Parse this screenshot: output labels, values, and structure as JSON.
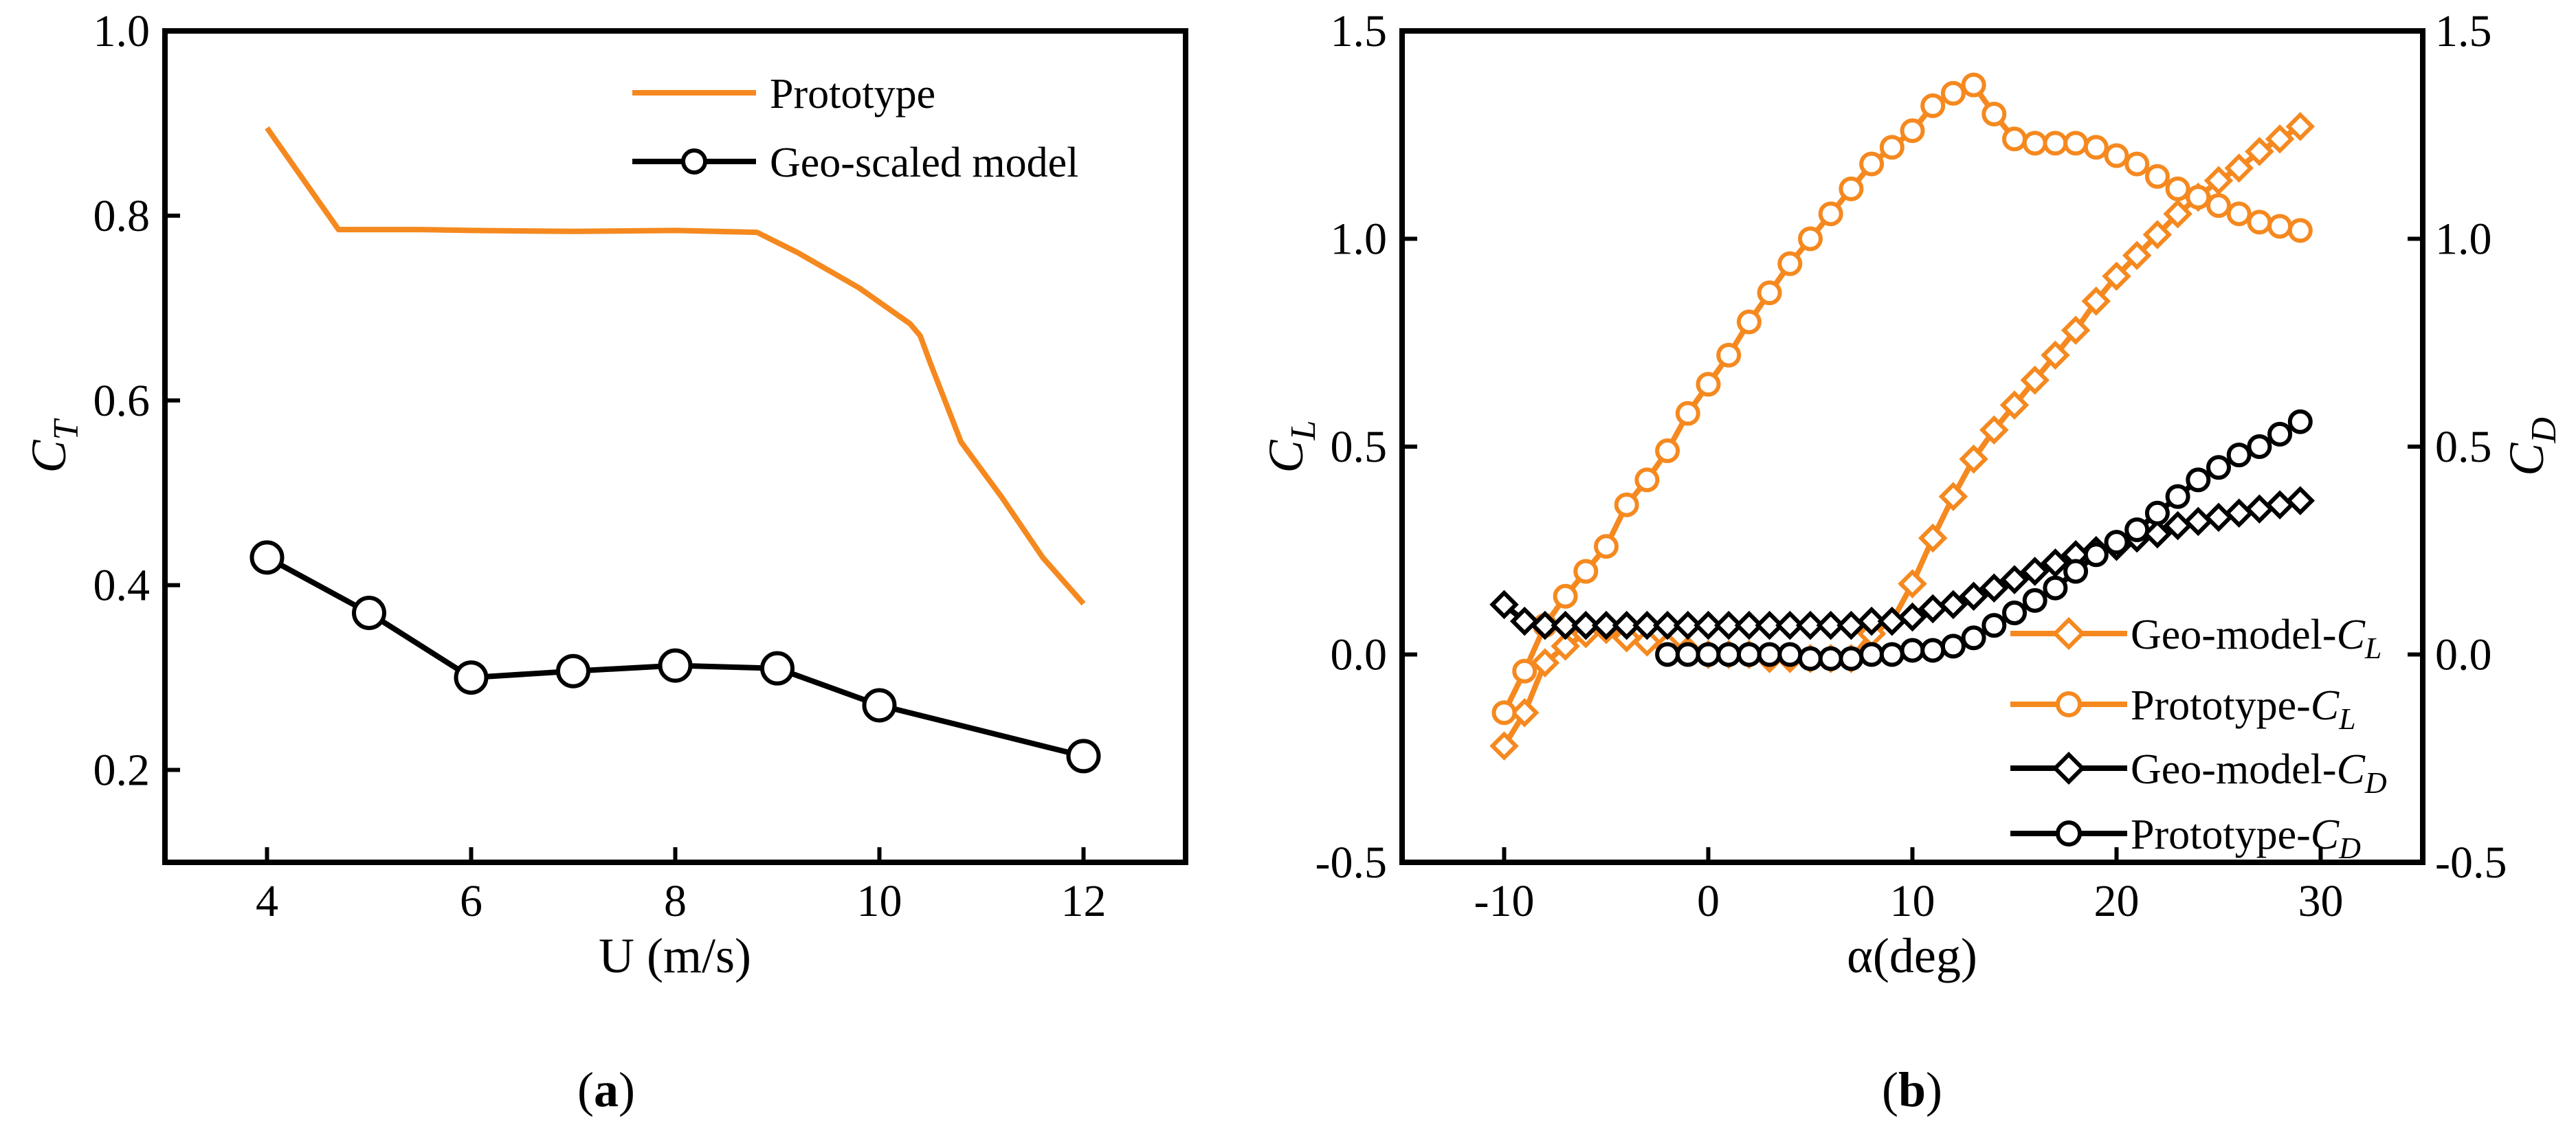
{
  "colors": {
    "orange": "#F5891F",
    "black": "#000000"
  },
  "chart_data": [
    {
      "type": "line",
      "panel_label": {
        "open": "(",
        "letter": "a",
        "close": ")"
      },
      "xlabel": "U (m/s)",
      "ylabel": {
        "main": "C",
        "sub": "T"
      },
      "xlim": [
        3,
        13
      ],
      "ylim": [
        0.1,
        1.0
      ],
      "xticks": [
        4,
        6,
        8,
        10,
        12
      ],
      "yticks": [
        0.2,
        0.4,
        0.6,
        0.8,
        1.0
      ],
      "xtick_labels": [
        "4",
        "6",
        "8",
        "10",
        "12"
      ],
      "ytick_labels": [
        "0.2",
        "0.4",
        "0.6",
        "0.8",
        "1.0"
      ],
      "legend_position": "top-right",
      "series": [
        {
          "name": "Prototype",
          "color": "#F5891F",
          "marker": "none",
          "x": [
            4,
            4.7,
            5.5,
            6,
            7,
            8,
            8.8,
            9.2,
            9.8,
            10.3,
            10.4,
            10.5,
            10.8,
            11.2,
            11.6,
            12
          ],
          "y": [
            0.895,
            0.785,
            0.785,
            0.784,
            0.783,
            0.784,
            0.782,
            0.76,
            0.722,
            0.683,
            0.67,
            0.64,
            0.555,
            0.495,
            0.43,
            0.38
          ]
        },
        {
          "name": "Geo-scaled model",
          "color": "#000000",
          "marker": "circle",
          "x": [
            4,
            5,
            6,
            7,
            8,
            9,
            10,
            12
          ],
          "y": [
            0.43,
            0.37,
            0.3,
            0.307,
            0.313,
            0.31,
            0.27,
            0.215
          ]
        }
      ]
    },
    {
      "type": "line",
      "panel_label": {
        "open": "(",
        "letter": "b",
        "close": ")"
      },
      "xlabel": "α(deg)",
      "ylabel": {
        "main": "C",
        "sub": "L"
      },
      "ylabel_right": {
        "main": "C",
        "sub": "D"
      },
      "xlim": [
        -15,
        35
      ],
      "ylim": [
        -0.5,
        1.5
      ],
      "xticks": [
        -10,
        0,
        10,
        20,
        30
      ],
      "yticks": [
        -0.5,
        0.0,
        0.5,
        1.0,
        1.5
      ],
      "xtick_labels": [
        "-10",
        "0",
        "10",
        "20",
        "30"
      ],
      "ytick_labels": [
        "-0.5",
        "0.0",
        "0.5",
        "1.0",
        "1.5"
      ],
      "ytick_labels_right": [
        "-0.5",
        "0.0",
        "0.5",
        "1.0",
        "1.5"
      ],
      "legend_position": "bottom-right",
      "series": [
        {
          "name": "Geo-model-",
          "name_sub": "L",
          "color": "#F5891F",
          "marker": "diamond",
          "x": [
            -10,
            -9,
            -8,
            -7,
            -6,
            -5,
            -4,
            -3,
            -2,
            -1,
            0,
            1,
            2,
            3,
            4,
            5,
            6,
            7,
            8,
            9,
            10,
            11,
            12,
            13,
            14,
            15,
            16,
            17,
            18,
            19,
            20,
            21,
            22,
            23,
            24,
            25,
            26,
            27,
            28,
            29
          ],
          "y": [
            -0.22,
            -0.14,
            -0.02,
            0.02,
            0.05,
            0.06,
            0.04,
            0.03,
            0.02,
            0.01,
            0.0,
            0.0,
            0.0,
            -0.01,
            -0.01,
            -0.01,
            -0.01,
            -0.01,
            0.05,
            0.08,
            0.17,
            0.28,
            0.38,
            0.47,
            0.54,
            0.6,
            0.66,
            0.72,
            0.78,
            0.85,
            0.91,
            0.96,
            1.01,
            1.06,
            1.1,
            1.14,
            1.17,
            1.21,
            1.24,
            1.27
          ]
        },
        {
          "name": "Prototype-",
          "name_sub": "L",
          "color": "#F5891F",
          "marker": "circle",
          "x": [
            -10,
            -9,
            -8,
            -7,
            -6,
            -5,
            -4,
            -3,
            -2,
            -1,
            0,
            1,
            2,
            3,
            4,
            5,
            6,
            7,
            8,
            9,
            10,
            11,
            12,
            13,
            14,
            15,
            16,
            17,
            18,
            19,
            20,
            21,
            22,
            23,
            24,
            25,
            26,
            27,
            28,
            29
          ],
          "y": [
            -0.14,
            -0.04,
            0.07,
            0.14,
            0.2,
            0.26,
            0.36,
            0.42,
            0.49,
            0.58,
            0.65,
            0.72,
            0.8,
            0.87,
            0.94,
            1.0,
            1.06,
            1.12,
            1.18,
            1.22,
            1.26,
            1.32,
            1.35,
            1.37,
            1.3,
            1.24,
            1.23,
            1.23,
            1.23,
            1.22,
            1.2,
            1.18,
            1.15,
            1.12,
            1.1,
            1.08,
            1.06,
            1.04,
            1.03,
            1.02
          ]
        },
        {
          "name": "Geo-model-",
          "name_sub": "D",
          "color": "#000000",
          "marker": "diamond",
          "x": [
            -10,
            -9,
            -8,
            -7,
            -6,
            -5,
            -4,
            -3,
            -2,
            -1,
            0,
            1,
            2,
            3,
            4,
            5,
            6,
            7,
            8,
            9,
            10,
            11,
            12,
            13,
            14,
            15,
            16,
            17,
            18,
            19,
            20,
            21,
            22,
            23,
            24,
            25,
            26,
            27,
            28,
            29
          ],
          "y": [
            0.12,
            0.08,
            0.07,
            0.07,
            0.07,
            0.07,
            0.07,
            0.07,
            0.07,
            0.07,
            0.07,
            0.07,
            0.07,
            0.07,
            0.07,
            0.07,
            0.07,
            0.07,
            0.08,
            0.08,
            0.09,
            0.11,
            0.12,
            0.14,
            0.16,
            0.18,
            0.2,
            0.22,
            0.24,
            0.25,
            0.26,
            0.28,
            0.29,
            0.31,
            0.32,
            0.33,
            0.34,
            0.35,
            0.36,
            0.37
          ]
        },
        {
          "name": "Prototype-",
          "name_sub": "D",
          "color": "#000000",
          "marker": "circle",
          "x": [
            -2,
            -1,
            0,
            1,
            2,
            3,
            4,
            5,
            6,
            7,
            8,
            9,
            10,
            11,
            12,
            13,
            14,
            15,
            16,
            17,
            18,
            19,
            20,
            21,
            22,
            23,
            24,
            25,
            26,
            27,
            28,
            29
          ],
          "y": [
            0.0,
            0.0,
            0.0,
            0.0,
            0.0,
            0.0,
            0.0,
            -0.01,
            -0.01,
            -0.01,
            0.0,
            0.0,
            0.01,
            0.01,
            0.02,
            0.04,
            0.07,
            0.1,
            0.13,
            0.16,
            0.2,
            0.24,
            0.27,
            0.3,
            0.34,
            0.38,
            0.42,
            0.45,
            0.48,
            0.5,
            0.53,
            0.56
          ]
        }
      ]
    }
  ]
}
